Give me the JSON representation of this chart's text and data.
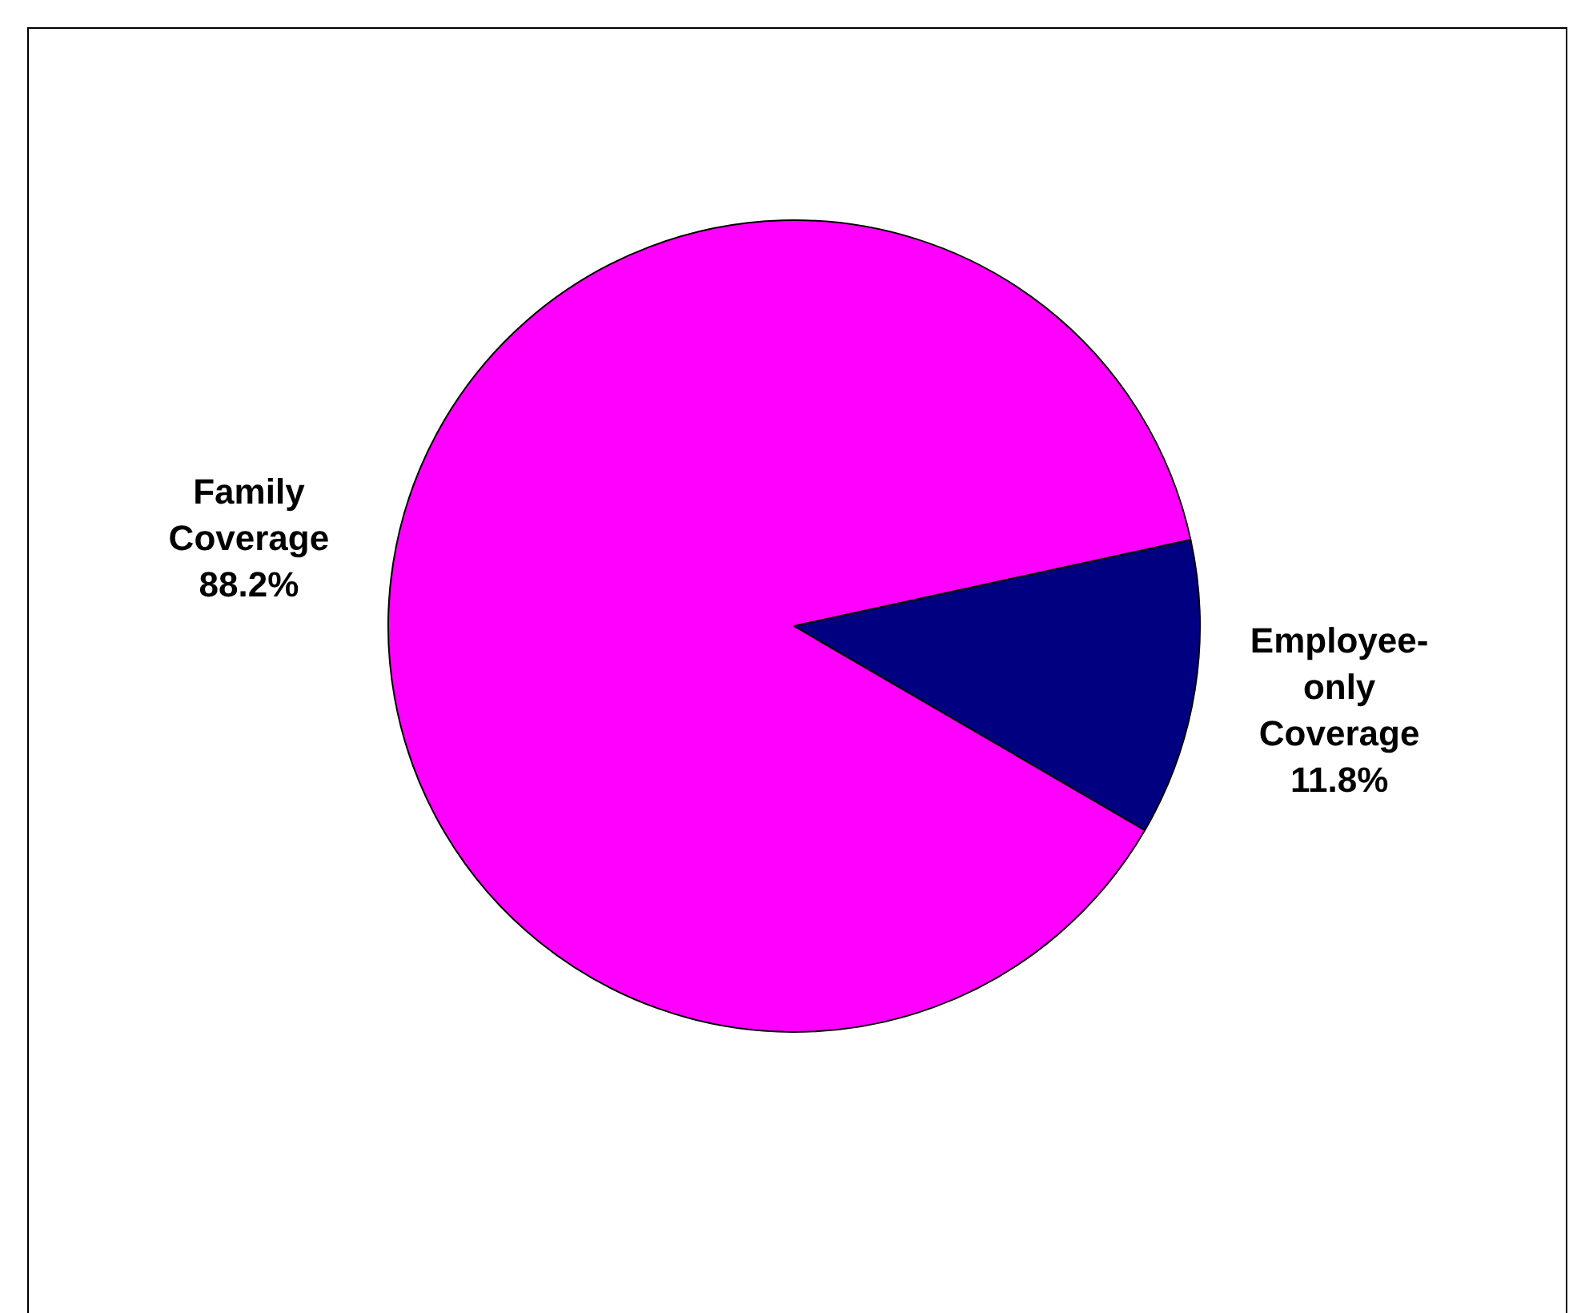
{
  "chart_data": {
    "type": "pie",
    "categories": [
      "Family Coverage",
      "Employee-only Coverage"
    ],
    "values": [
      88.2,
      11.8
    ],
    "value_labels": [
      "88.2%",
      "11.8%"
    ],
    "colors": [
      "#ff00ff",
      "#000080"
    ],
    "legend": false
  }
}
